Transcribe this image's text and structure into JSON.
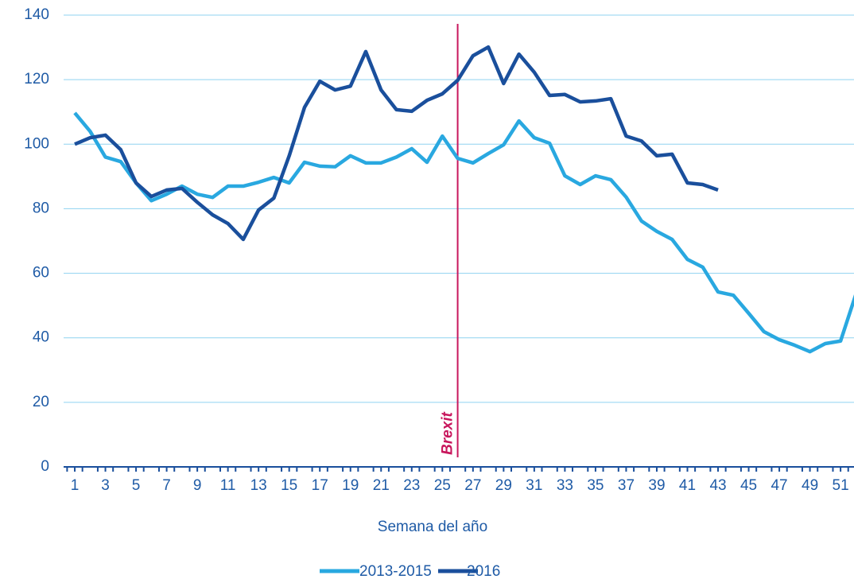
{
  "chart_data": {
    "type": "line",
    "x_label": "Semana del año",
    "x": [
      1,
      2,
      3,
      4,
      5,
      6,
      7,
      8,
      9,
      10,
      11,
      12,
      13,
      14,
      15,
      16,
      17,
      18,
      19,
      20,
      21,
      22,
      23,
      24,
      25,
      26,
      27,
      28,
      29,
      30,
      31,
      32,
      33,
      34,
      35,
      36,
      37,
      38,
      39,
      40,
      41,
      42,
      43,
      44,
      45,
      46,
      47,
      48,
      49,
      50,
      51,
      52
    ],
    "xlim": [
      0.5,
      52.5
    ],
    "xticks": [
      1,
      3,
      5,
      7,
      9,
      11,
      13,
      15,
      17,
      19,
      21,
      23,
      25,
      27,
      29,
      31,
      33,
      35,
      37,
      39,
      41,
      43,
      45,
      47,
      49,
      51
    ],
    "ylim": [
      0,
      140
    ],
    "yticks": [
      0,
      20,
      40,
      60,
      80,
      100,
      120,
      140
    ],
    "grid": true,
    "legend": "bottom",
    "series": [
      {
        "name": "2013-2015",
        "color": "#29a8e0",
        "values": [
          109.7,
          104,
          96,
          94.6,
          88,
          82.5,
          84.5,
          87,
          84.5,
          83.5,
          87,
          87,
          88.2,
          89.7,
          88,
          94.4,
          93.2,
          93,
          96.4,
          94.2,
          94.2,
          96,
          98.6,
          94.4,
          102.5,
          95.6,
          94.2,
          97.1,
          99.8,
          107.2,
          102,
          100.3,
          90.2,
          87.5,
          90.2,
          89,
          83.6,
          76.2,
          73,
          70.5,
          64.3,
          61.9,
          54.2,
          53.2,
          47.6,
          41.9,
          39.4,
          37.7,
          35.7,
          38.2,
          39,
          53.5
        ]
      },
      {
        "name": "2016",
        "color": "#1a4f9c",
        "values": [
          100,
          102,
          102.8,
          98.3,
          88,
          83.8,
          85.8,
          86.3,
          82,
          78.1,
          75.4,
          70.5,
          79.6,
          83.3,
          96.4,
          111.4,
          119.5,
          116.8,
          118,
          128.7,
          116.8,
          110.7,
          110.2,
          113.6,
          115.6,
          119.8,
          127.4,
          130.1,
          118.8,
          127.9,
          122.3,
          115.1,
          115.4,
          113.1,
          113.4,
          114.1,
          102.5,
          101,
          96.4,
          96.9,
          88,
          87.5,
          85.8,
          null,
          null,
          null,
          null,
          null,
          null,
          null,
          null,
          null
        ]
      }
    ],
    "annotations": [
      {
        "text": "Brexit",
        "x": 26,
        "color": "#c8175d"
      }
    ]
  }
}
